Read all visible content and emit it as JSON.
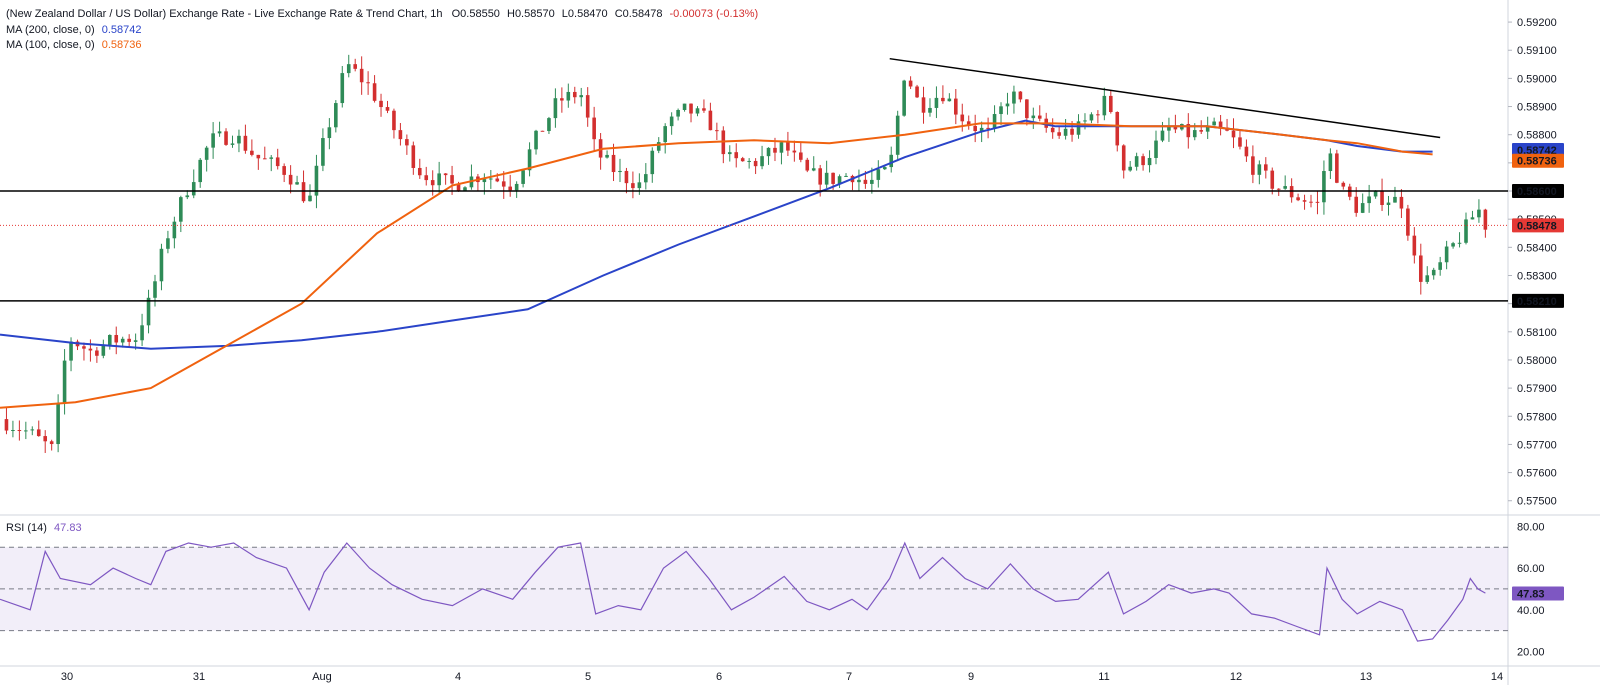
{
  "header": {
    "title": "(New Zealand Dollar / US Dollar) Exchange Rate - Live Exchange Rate & Trend Chart, 1h",
    "open": "O0.58550",
    "high": "H0.58570",
    "low": "L0.58470",
    "close": "C0.58478",
    "change": "-0.00073 (-0.13%)"
  },
  "indicators": [
    {
      "label": "MA (200, close, 0)",
      "value": "0.58742",
      "color": "#2a44c9"
    },
    {
      "label": "MA (100, close, 0)",
      "value": "0.58736",
      "color": "#f0620f"
    }
  ],
  "rsi_legend": {
    "label": "RSI (14)",
    "value": "47.83",
    "color": "#7e57c2"
  },
  "colors": {
    "up": "#2e8b57",
    "down": "#d32f2f",
    "ma200": "#2a44c9",
    "ma100": "#f0620f",
    "rsi": "#7e57c2",
    "level": "#000000",
    "price": "#e53935"
  },
  "chart_data": [
    {
      "type": "candlestick",
      "symbol": "NZD/USD",
      "timeframe": "1h",
      "x_ticks": [
        "30",
        "31",
        "Aug",
        "4",
        "5",
        "6",
        "7",
        "9",
        "11",
        "12",
        "13",
        "14"
      ],
      "y_ticks": [
        "0.59200",
        "0.59100",
        "0.59000",
        "0.58900",
        "0.58800",
        "0.58700",
        "0.58600",
        "0.58500",
        "0.58400",
        "0.58300",
        "0.58200",
        "0.58100",
        "0.58000",
        "0.57900",
        "0.57800",
        "0.57700",
        "0.57600",
        "0.57500"
      ],
      "ylim": [
        0.5746,
        0.5925
      ],
      "close_path": [
        [
          0.0,
          0.5779
        ],
        [
          0.02,
          0.5774
        ],
        [
          0.035,
          0.5768
        ],
        [
          0.045,
          0.5808
        ],
        [
          0.06,
          0.5803
        ],
        [
          0.075,
          0.5807
        ],
        [
          0.09,
          0.5808
        ],
        [
          0.1,
          0.5822
        ],
        [
          0.11,
          0.5843
        ],
        [
          0.125,
          0.5862
        ],
        [
          0.14,
          0.5878
        ],
        [
          0.155,
          0.588
        ],
        [
          0.17,
          0.5872
        ],
        [
          0.19,
          0.5867
        ],
        [
          0.205,
          0.5856
        ],
        [
          0.215,
          0.5878
        ],
        [
          0.23,
          0.5905
        ],
        [
          0.245,
          0.5897
        ],
        [
          0.26,
          0.5883
        ],
        [
          0.28,
          0.5866
        ],
        [
          0.3,
          0.5862
        ],
        [
          0.32,
          0.5866
        ],
        [
          0.34,
          0.5862
        ],
        [
          0.355,
          0.5878
        ],
        [
          0.37,
          0.5892
        ],
        [
          0.385,
          0.5895
        ],
        [
          0.395,
          0.5874
        ],
        [
          0.41,
          0.5866
        ],
        [
          0.425,
          0.5862
        ],
        [
          0.44,
          0.5882
        ],
        [
          0.455,
          0.5889
        ],
        [
          0.47,
          0.5885
        ],
        [
          0.485,
          0.587
        ],
        [
          0.5,
          0.587
        ],
        [
          0.52,
          0.5876
        ],
        [
          0.535,
          0.5866
        ],
        [
          0.55,
          0.5864
        ],
        [
          0.565,
          0.5866
        ],
        [
          0.575,
          0.5862
        ],
        [
          0.59,
          0.5868
        ],
        [
          0.6,
          0.5903
        ],
        [
          0.61,
          0.589
        ],
        [
          0.625,
          0.5895
        ],
        [
          0.64,
          0.5885
        ],
        [
          0.655,
          0.588
        ],
        [
          0.67,
          0.5895
        ],
        [
          0.685,
          0.5885
        ],
        [
          0.7,
          0.588
        ],
        [
          0.715,
          0.5882
        ],
        [
          0.735,
          0.5893
        ],
        [
          0.745,
          0.5868
        ],
        [
          0.76,
          0.5872
        ],
        [
          0.775,
          0.5882
        ],
        [
          0.79,
          0.588
        ],
        [
          0.805,
          0.5882
        ],
        [
          0.815,
          0.588
        ],
        [
          0.83,
          0.5869
        ],
        [
          0.845,
          0.5862
        ],
        [
          0.86,
          0.5858
        ],
        [
          0.875,
          0.5855
        ],
        [
          0.88,
          0.5876
        ],
        [
          0.89,
          0.586
        ],
        [
          0.9,
          0.5854
        ],
        [
          0.915,
          0.5858
        ],
        [
          0.93,
          0.5856
        ],
        [
          0.94,
          0.583
        ],
        [
          0.95,
          0.5829
        ],
        [
          0.96,
          0.5838
        ],
        [
          0.97,
          0.5845
        ],
        [
          0.98,
          0.5854
        ],
        [
          0.985,
          0.5848
        ]
      ],
      "overlays": [
        {
          "name": "MA (200, close, 0)",
          "color": "#2a44c9",
          "points": [
            [
              0.0,
              0.5809
            ],
            [
              0.05,
              0.5806
            ],
            [
              0.1,
              0.5804
            ],
            [
              0.15,
              0.5805
            ],
            [
              0.2,
              0.5807
            ],
            [
              0.25,
              0.581
            ],
            [
              0.3,
              0.5814
            ],
            [
              0.35,
              0.5818
            ],
            [
              0.4,
              0.583
            ],
            [
              0.45,
              0.5841
            ],
            [
              0.5,
              0.5851
            ],
            [
              0.55,
              0.5861
            ],
            [
              0.6,
              0.5872
            ],
            [
              0.65,
              0.5881
            ],
            [
              0.68,
              0.5885
            ],
            [
              0.7,
              0.5883
            ],
            [
              0.8,
              0.5883
            ],
            [
              0.85,
              0.588
            ],
            [
              0.88,
              0.5878
            ],
            [
              0.9,
              0.5876
            ],
            [
              0.93,
              0.5874
            ],
            [
              0.95,
              0.5874
            ]
          ]
        },
        {
          "name": "MA (100, close, 0)",
          "color": "#f0620f",
          "points": [
            [
              0.0,
              0.5783
            ],
            [
              0.05,
              0.5785
            ],
            [
              0.1,
              0.579
            ],
            [
              0.15,
              0.5805
            ],
            [
              0.2,
              0.582
            ],
            [
              0.25,
              0.5845
            ],
            [
              0.3,
              0.5862
            ],
            [
              0.35,
              0.5868
            ],
            [
              0.4,
              0.5875
            ],
            [
              0.45,
              0.5877
            ],
            [
              0.5,
              0.5878
            ],
            [
              0.55,
              0.5877
            ],
            [
              0.6,
              0.588
            ],
            [
              0.65,
              0.5884
            ],
            [
              0.7,
              0.5884
            ],
            [
              0.75,
              0.5883
            ],
            [
              0.8,
              0.5883
            ],
            [
              0.85,
              0.588
            ],
            [
              0.88,
              0.5878
            ],
            [
              0.9,
              0.5877
            ],
            [
              0.93,
              0.5874
            ],
            [
              0.95,
              0.5873
            ]
          ]
        }
      ],
      "levels": [
        {
          "value": 0.586,
          "label": "0.58600",
          "color": "#000000"
        },
        {
          "value": 0.5821,
          "label": "0.58210",
          "color": "#000000"
        }
      ],
      "trendline": {
        "from": [
          0.59,
          0.5907
        ],
        "to": [
          0.955,
          0.5879
        ],
        "color": "#000000"
      },
      "current_price": {
        "value": 0.58478,
        "label": "0.58478",
        "color": "#e53935"
      },
      "axis_badges": [
        {
          "label": "0.58742",
          "value": 0.58742,
          "color": "#2a44c9"
        },
        {
          "label": "0.58736",
          "value": 0.58736,
          "color": "#f0620f"
        }
      ]
    },
    {
      "type": "line",
      "title": "RSI (14)",
      "y_ticks": [
        "80.00",
        "60.00",
        "40.00",
        "20.00"
      ],
      "ylim": [
        14,
        84
      ],
      "bands": [
        30,
        50,
        70
      ],
      "current": {
        "value": 47.83,
        "label": "47.83"
      },
      "series": [
        {
          "name": "RSI (14)",
          "color": "#7e57c2",
          "values": [
            [
              0.0,
              45
            ],
            [
              0.02,
              40
            ],
            [
              0.03,
              68
            ],
            [
              0.04,
              55
            ],
            [
              0.06,
              52
            ],
            [
              0.075,
              60
            ],
            [
              0.09,
              55
            ],
            [
              0.1,
              52
            ],
            [
              0.11,
              68
            ],
            [
              0.125,
              72
            ],
            [
              0.14,
              70
            ],
            [
              0.155,
              72
            ],
            [
              0.17,
              65
            ],
            [
              0.19,
              60
            ],
            [
              0.205,
              40
            ],
            [
              0.215,
              58
            ],
            [
              0.23,
              72
            ],
            [
              0.245,
              60
            ],
            [
              0.26,
              52
            ],
            [
              0.28,
              45
            ],
            [
              0.3,
              42
            ],
            [
              0.32,
              50
            ],
            [
              0.34,
              45
            ],
            [
              0.355,
              58
            ],
            [
              0.37,
              70
            ],
            [
              0.385,
              72
            ],
            [
              0.395,
              38
            ],
            [
              0.41,
              42
            ],
            [
              0.425,
              40
            ],
            [
              0.44,
              60
            ],
            [
              0.455,
              68
            ],
            [
              0.47,
              55
            ],
            [
              0.485,
              40
            ],
            [
              0.5,
              46
            ],
            [
              0.52,
              56
            ],
            [
              0.535,
              44
            ],
            [
              0.55,
              40
            ],
            [
              0.565,
              45
            ],
            [
              0.575,
              40
            ],
            [
              0.59,
              55
            ],
            [
              0.6,
              72
            ],
            [
              0.61,
              55
            ],
            [
              0.625,
              65
            ],
            [
              0.64,
              55
            ],
            [
              0.655,
              50
            ],
            [
              0.67,
              62
            ],
            [
              0.685,
              50
            ],
            [
              0.7,
              44
            ],
            [
              0.715,
              45
            ],
            [
              0.735,
              58
            ],
            [
              0.745,
              38
            ],
            [
              0.76,
              44
            ],
            [
              0.775,
              52
            ],
            [
              0.79,
              48
            ],
            [
              0.805,
              50
            ],
            [
              0.815,
              48
            ],
            [
              0.83,
              38
            ],
            [
              0.845,
              36
            ],
            [
              0.86,
              32
            ],
            [
              0.875,
              28
            ],
            [
              0.88,
              60
            ],
            [
              0.89,
              45
            ],
            [
              0.9,
              38
            ],
            [
              0.915,
              44
            ],
            [
              0.93,
              40
            ],
            [
              0.94,
              25
            ],
            [
              0.95,
              26
            ],
            [
              0.96,
              35
            ],
            [
              0.97,
              45
            ],
            [
              0.975,
              55
            ],
            [
              0.98,
              50
            ],
            [
              0.985,
              48
            ]
          ]
        }
      ]
    }
  ]
}
